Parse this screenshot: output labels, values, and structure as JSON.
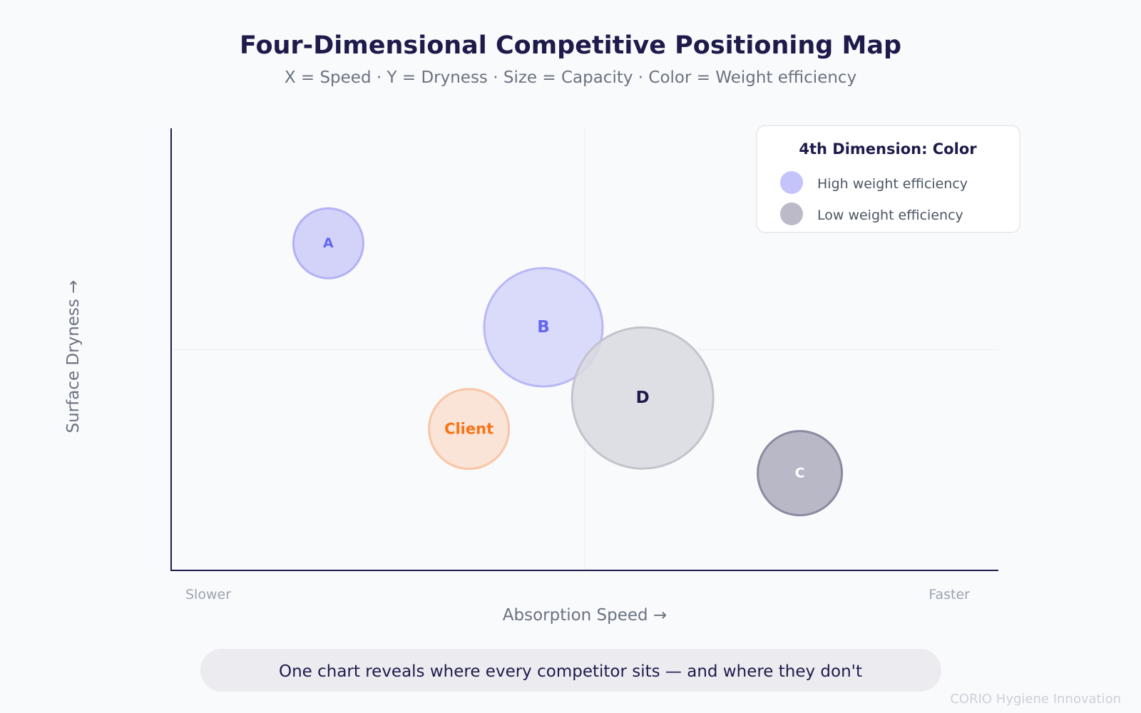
{
  "chart_data": {
    "type": "bubble",
    "title": "Four-Dimensional Competitive Positioning Map",
    "subtitle": "X = Speed · Y = Dryness · Size = Capacity · Color = Weight efficiency",
    "xlabel": "Absorption Speed →",
    "ylabel": "Surface Dryness →",
    "x_low_label": "Slower",
    "x_high_label": "Faster",
    "xlim": [
      0,
      100
    ],
    "ylim": [
      0,
      100
    ],
    "grid": false,
    "midlines": true,
    "legend": {
      "title": "4th Dimension: Color",
      "placement": "top-right",
      "entries": [
        {
          "label": "High weight efficiency",
          "color": "#c4c4fb"
        },
        {
          "label": "Low weight efficiency",
          "color": "#bcbac8"
        }
      ]
    },
    "points": [
      {
        "label": "A",
        "x": 19,
        "y": 74,
        "size": 49,
        "efficiency": "high",
        "fill": "#cccbf9",
        "stroke": "#b3b1f4",
        "text_color": "#6366f1",
        "font_size": 19
      },
      {
        "label": "B",
        "x": 45,
        "y": 55,
        "size": 83,
        "efficiency": "high",
        "fill": "#d5d5fa",
        "stroke": "#b9b8f5",
        "text_color": "#6366f1",
        "font_size": 23
      },
      {
        "label": "Client",
        "x": 36,
        "y": 32,
        "size": 56,
        "efficiency": "client",
        "fill": "#f9dfd0",
        "stroke": "#f8c6a6",
        "text_color": "#f97316",
        "font_size": 21
      },
      {
        "label": "D",
        "x": 57,
        "y": 39,
        "size": 99,
        "efficiency": "low",
        "fill": "#d9d9e1",
        "stroke": "#c4c3cc",
        "text_color": "#1e1b4b",
        "font_size": 23
      },
      {
        "label": "C",
        "x": 76,
        "y": 22,
        "size": 59,
        "efficiency": "low",
        "fill": "#aeacbd",
        "stroke": "#8c8aa0",
        "text_color": "#ffffff",
        "font_size": 19
      }
    ]
  },
  "caption": "One chart reveals where every competitor sits — and where they don't",
  "footer": "CORIO Hygiene Innovation"
}
